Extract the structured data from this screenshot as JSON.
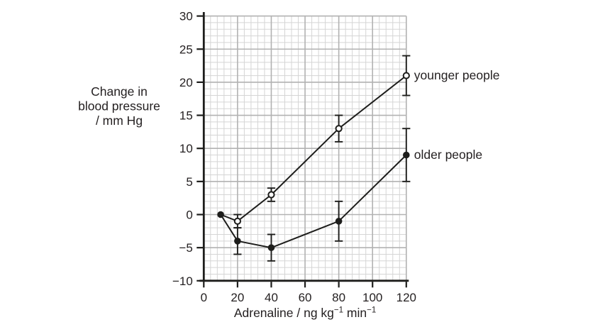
{
  "figure": {
    "kind": "error-bar line graph",
    "ylabel_lines": [
      "Change in",
      "blood pressure",
      "/ mm Hg"
    ],
    "series_end_labels": [
      "younger people",
      "older people"
    ]
  },
  "chart_data": {
    "type": "line",
    "title": "",
    "xlabel": "Adrenaline / ng kg⁻¹ min⁻¹",
    "xlabel_segments": [
      {
        "t": "Adrenaline / ng kg"
      },
      {
        "t": "−1",
        "sup": true
      },
      {
        "t": " min"
      },
      {
        "t": "−1",
        "sup": true
      }
    ],
    "ylabel": "Change in blood pressure / mm Hg",
    "xlim": [
      0,
      120
    ],
    "ylim": [
      -10,
      30
    ],
    "x_ticks": {
      "values": [
        0,
        20,
        40,
        60,
        80,
        100,
        120
      ],
      "labels": [
        "0",
        "20",
        "40",
        "60",
        "80",
        "100",
        "120"
      ]
    },
    "y_ticks": {
      "values": [
        30,
        25,
        20,
        15,
        10,
        5,
        0,
        -5,
        -10
      ],
      "labels": [
        "30",
        "25",
        "20",
        "15",
        "10",
        "5",
        "0",
        "−5",
        "−10"
      ]
    },
    "grid": {
      "on": true,
      "minor_x_step": 4,
      "minor_y_step": 1,
      "major_x_step": 20,
      "major_y_step": 5
    },
    "legend": {
      "position": "labels at right end of each line",
      "entries": [
        "younger people",
        "older people"
      ]
    },
    "series": [
      {
        "name": "younger people",
        "marker": "open-circle",
        "shares_first_point_with": "older people",
        "points": [
          {
            "x": 10,
            "y": 0
          },
          {
            "x": 20,
            "y": -1,
            "err": [
              -2,
              0
            ]
          },
          {
            "x": 40,
            "y": 3,
            "err": [
              2,
              4
            ]
          },
          {
            "x": 80,
            "y": 13,
            "err": [
              11,
              15
            ]
          },
          {
            "x": 120,
            "y": 21,
            "err": [
              18,
              24
            ]
          }
        ]
      },
      {
        "name": "older people",
        "marker": "filled-circle",
        "points": [
          {
            "x": 10,
            "y": 0
          },
          {
            "x": 20,
            "y": -4,
            "err": [
              -6,
              -2
            ]
          },
          {
            "x": 40,
            "y": -5,
            "err": [
              -7,
              -3
            ]
          },
          {
            "x": 80,
            "y": -1,
            "err": [
              -4,
              2
            ]
          },
          {
            "x": 120,
            "y": 9,
            "err": [
              5,
              13
            ]
          }
        ]
      }
    ],
    "colors": {
      "stroke": "#1d1d1b",
      "text": "#231f20",
      "grid_minor": "#d5d5d5",
      "grid_major": "#b2b2b2",
      "marker_open_fill": "#ffffff",
      "background": "#ffffff"
    }
  }
}
